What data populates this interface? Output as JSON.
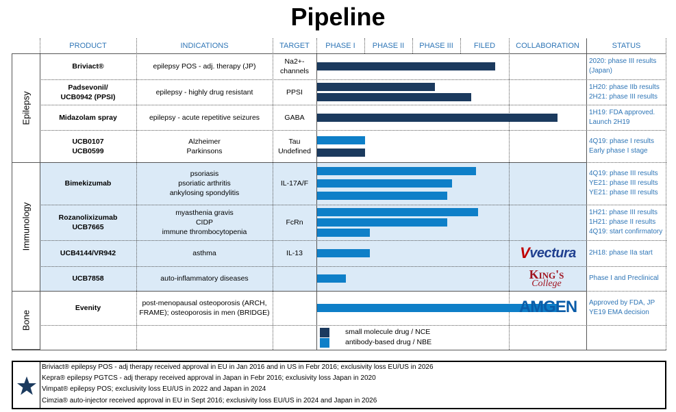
{
  "title": "Pipeline",
  "headers": {
    "product": "PRODUCT",
    "indications": "INDICATIONS",
    "target": "TARGET",
    "phase1": "PHASE I",
    "phase2": "PHASE II",
    "phase3": "PHASE III",
    "filed": "FILED",
    "collaboration": "COLLABORATION",
    "status": "STATUS"
  },
  "colors": {
    "nce": "#1b3a5e",
    "nbe": "#0e7fc8",
    "band": "#dbeaf7",
    "status": "#2e75b6"
  },
  "groups": [
    {
      "name": "Epilepsy"
    },
    {
      "name": "Immunology"
    },
    {
      "name": "Bone"
    }
  ],
  "rows": [
    {
      "product": [
        "Briviact®"
      ],
      "indications": [
        "epilepsy POS - adj. therapy (JP)"
      ],
      "target": [
        "Na2+-",
        "channels"
      ],
      "status": [
        "2020: phase III results",
        "(Japan)"
      ],
      "bars": [
        {
          "type": "nce",
          "stage": 3.7
        }
      ]
    },
    {
      "product": [
        "Padsevonil/",
        "UCB0942 (PPSI)"
      ],
      "indications": [
        "epilepsy - highly drug resistant"
      ],
      "target": [
        "PPSI"
      ],
      "status": [
        "1H20: phase IIb results",
        "2H21: phase III results"
      ],
      "bars": [
        {
          "type": "nce",
          "stage": 2.45
        },
        {
          "type": "nce",
          "stage": 3.2
        }
      ]
    },
    {
      "product": [
        "Midazolam spray"
      ],
      "indications": [
        "epilepsy - acute repetitive seizures"
      ],
      "target": [
        "GABA"
      ],
      "status": [
        "1H19: FDA approved.",
        "Launch 2H19"
      ],
      "bars": [
        {
          "type": "nce",
          "stage": 5.0
        }
      ]
    },
    {
      "product": [
        "UCB0107",
        "UCB0599"
      ],
      "indications": [
        "Alzheimer",
        "Parkinsons"
      ],
      "target": [
        "Tau",
        "Undefined"
      ],
      "status": [
        "4Q19: phase I results",
        "Early phase I stage"
      ],
      "bars": [
        {
          "type": "nbe",
          "stage": 1.0
        },
        {
          "type": "nce",
          "stage": 1.0
        }
      ]
    },
    {
      "product": [
        "Bimekizumab"
      ],
      "indications": [
        "psoriasis",
        "psoriatic arthritis",
        "ankylosing spondylitis"
      ],
      "target": [
        "IL-17A/F"
      ],
      "status": [
        "4Q19: phase III results",
        "YE21: phase III results",
        "YE21: phase III results"
      ],
      "bars": [
        {
          "type": "nbe",
          "stage": 3.3
        },
        {
          "type": "nbe",
          "stage": 2.8
        },
        {
          "type": "nbe",
          "stage": 2.7
        }
      ]
    },
    {
      "product": [
        "Rozanolixizumab",
        "UCB7665"
      ],
      "indications": [
        "myasthenia gravis",
        "CIDP",
        "immune thrombocytopenia"
      ],
      "target": [
        "FcRn"
      ],
      "status": [
        "1H21: phase III results",
        "1H21: phase II results",
        "4Q19: start confirmatory"
      ],
      "bars": [
        {
          "type": "nbe",
          "stage": 3.35
        },
        {
          "type": "nbe",
          "stage": 2.7
        },
        {
          "type": "nbe",
          "stage": 1.1
        }
      ]
    },
    {
      "product": [
        "UCB4144/VR942"
      ],
      "indications": [
        "asthma"
      ],
      "target": [
        "IL-13"
      ],
      "status": [
        "2H18: phase IIa start"
      ],
      "bars": [
        {
          "type": "nbe",
          "stage": 1.1
        }
      ]
    },
    {
      "product": [
        "UCB7858"
      ],
      "indications": [
        "auto-inflammatory diseases"
      ],
      "target": [],
      "status": [
        "Phase I and Preclinical"
      ],
      "bars": [
        {
          "type": "nbe",
          "stage": 0.6
        }
      ]
    },
    {
      "product": [
        "Evenity"
      ],
      "indications": [
        "post-menopausal osteoporosis (ARCH,",
        "FRAME); osteoporosis in men (BRIDGE)"
      ],
      "target": [],
      "status": [
        "Approved by FDA, JP",
        "YE19 EMA decision"
      ],
      "bars": [
        {
          "type": "nbe",
          "stage": 5.0
        }
      ]
    }
  ],
  "collaborations": {
    "vectura": "vectura",
    "kings_line1": "King's",
    "kings_line2": "College",
    "amgen": "AMGEN"
  },
  "legend": {
    "nce": "small molecule drug / NCE",
    "nbe": "antibody-based drug / NBE"
  },
  "footnotes": [
    "Briviact® epilepsy POS - adj therapy received approval in EU in Jan 2016 and in US in Febr 2016; exclusivity loss EU/US in 2026",
    "Kepra® epilepsy PGTCS - adj therapy received approval in Japan in Febr 2016; exclusivity loss Japan in 2020",
    "Vimpat® epilepsy POS; exclusivity loss EU/US in 2022 and Japan in 2024",
    "Cimzia® auto-injector received approval in EU in Sept 2016; exclusivity loss EU/US in 2024 and Japan in 2026"
  ],
  "chart_data": {
    "type": "bar",
    "title": "Pipeline",
    "categories": [
      "PHASE I",
      "PHASE II",
      "PHASE III",
      "FILED"
    ],
    "series": [
      {
        "name": "small molecule drug / NCE",
        "values": [
          {
            "product": "Briviact®",
            "stage": 3.7
          },
          {
            "product": "Padsevonil/UCB0942 (PPSI)",
            "stage": 2.45
          },
          {
            "product": "Padsevonil/UCB0942 (PPSI)",
            "stage": 3.2
          },
          {
            "product": "Midazolam spray",
            "stage": 5.0
          },
          {
            "product": "UCB0599",
            "stage": 1.0
          }
        ]
      },
      {
        "name": "antibody-based drug / NBE",
        "values": [
          {
            "product": "UCB0107",
            "stage": 1.0
          },
          {
            "product": "Bimekizumab",
            "stage": 3.3
          },
          {
            "product": "Bimekizumab",
            "stage": 2.8
          },
          {
            "product": "Bimekizumab",
            "stage": 2.7
          },
          {
            "product": "Rozanolixizumab UCB7665",
            "stage": 3.35
          },
          {
            "product": "Rozanolixizumab UCB7665",
            "stage": 2.7
          },
          {
            "product": "Rozanolixizumab UCB7665",
            "stage": 1.1
          },
          {
            "product": "UCB4144/VR942",
            "stage": 1.1
          },
          {
            "product": "UCB7858",
            "stage": 0.6
          },
          {
            "product": "Evenity",
            "stage": 5.0
          }
        ]
      }
    ]
  }
}
